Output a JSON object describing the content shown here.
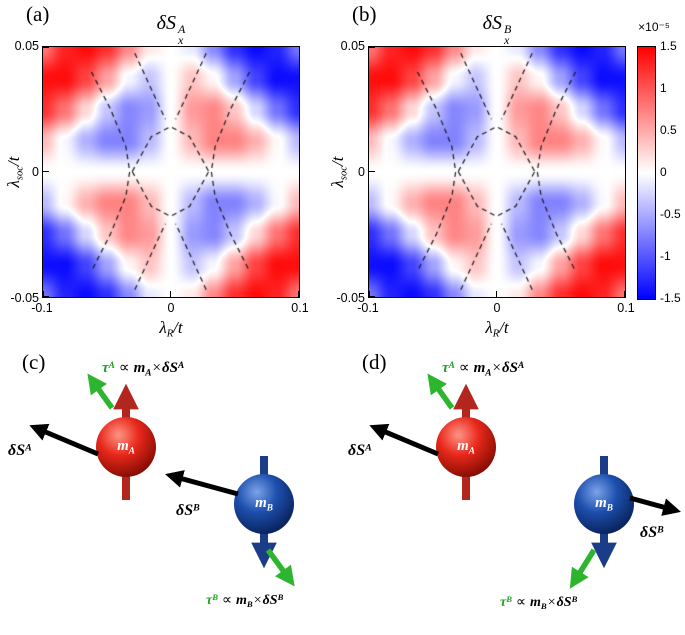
{
  "panels": {
    "a": "(a)",
    "b": "(b)",
    "c": "(c)",
    "d": "(d)"
  },
  "math": {
    "deltaS": "δS",
    "sub_x": "x",
    "sup_A": "A",
    "sup_B": "B",
    "lambda": "λ",
    "sub_soc": "soc",
    "sub_R": "R",
    "slash_t": "/t",
    "tau": "τ",
    "m": "m",
    "sub_A": "A",
    "sub_B": "B",
    "propto": "∝",
    "times": "×"
  },
  "axes": {
    "x_tick_labels": [
      "-0.1",
      "0",
      "0.1"
    ],
    "y_tick_labels": [
      "0.05",
      "0",
      "-0.05"
    ]
  },
  "colorbar": {
    "exponent": "×10⁻⁵",
    "tick_labels": [
      "1.5",
      "1",
      "0.5",
      "0",
      "-0.5",
      "-1",
      "-1.5"
    ]
  },
  "diagram": {
    "legend_torque_A": "τ^A ∝ m_A × δS^A",
    "legend_torque_B": "τ^B ∝ m_B × δS^B",
    "legend_spin_A": "δS^A",
    "legend_spin_B": "δS^B",
    "legend_moment_A": "m_A",
    "legend_moment_B": "m_B",
    "torque_color": "#1ca41f",
    "moment_A_color": "#b3261e",
    "moment_B_color": "#1b3c86",
    "spin_color": "#000000"
  },
  "chart_data": {
    "type": "heatmap",
    "panels": [
      {
        "id": "a",
        "title": "δS_x^A"
      },
      {
        "id": "b",
        "title": "δS_x^B"
      }
    ],
    "x_axis": {
      "label": "λ_R/t",
      "min": -0.1,
      "max": 0.1,
      "ticks": [
        -0.1,
        0,
        0.1
      ]
    },
    "y_axis": {
      "label": "λ_soc/t",
      "min": -0.05,
      "max": 0.05,
      "ticks": [
        -0.05,
        0,
        0.05
      ]
    },
    "value_units": "1e-5",
    "value_range": [
      -1.5,
      1.5
    ],
    "colormap": "blue-white-red",
    "note": "Grid values estimated from figure (units of 1e-5); panels (a) and (b) are visually identical; pattern is odd in both axes: red lobes top-left/bottom-right, blue lobes top-right/bottom-left, with inner lobes of opposite sign and white bands along the axes.",
    "grid": [
      [
        0.81,
        1.29,
        1.44,
        1.23,
        0.7,
        0.13,
        0,
        -0.13,
        -0.7,
        -1.23,
        -1.44,
        -1.29,
        -0.81
      ],
      [
        1.41,
        1.43,
        1.11,
        0.55,
        -0.05,
        -0.34,
        0,
        0.34,
        0.05,
        -0.55,
        -1.11,
        -1.43,
        -1.41
      ],
      [
        1.23,
        0.83,
        0.24,
        -0.34,
        -0.71,
        -0.59,
        0,
        0.59,
        0.71,
        0.34,
        -0.24,
        -0.83,
        -1.23
      ],
      [
        0.4,
        -0.04,
        -0.46,
        -0.73,
        -0.73,
        -0.41,
        0,
        0.41,
        0.73,
        0.73,
        0.46,
        0.04,
        -0.4
      ],
      [
        0,
        0,
        0,
        0,
        0,
        0,
        0,
        0,
        0,
        0,
        0,
        0,
        0
      ],
      [
        -0.4,
        0.04,
        0.46,
        0.73,
        0.73,
        0.41,
        0,
        -0.41,
        -0.73,
        -0.73,
        -0.46,
        -0.04,
        0.4
      ],
      [
        -1.23,
        -0.83,
        -0.24,
        0.34,
        0.71,
        0.59,
        0,
        -0.59,
        -0.71,
        -0.34,
        0.24,
        0.83,
        1.23
      ],
      [
        -1.41,
        -1.43,
        -1.11,
        -0.55,
        0.05,
        0.34,
        0,
        -0.34,
        -0.05,
        0.55,
        1.11,
        1.43,
        1.41
      ],
      [
        -0.81,
        -1.29,
        -1.44,
        -1.23,
        -0.7,
        -0.13,
        0,
        0.13,
        0.7,
        1.23,
        1.44,
        1.29,
        0.81
      ]
    ],
    "dashed_contours_normalized": [
      [
        [
          -0.62,
          0.8
        ],
        [
          -0.47,
          0.5
        ],
        [
          -0.35,
          0.2
        ],
        [
          -0.32,
          0.0
        ],
        [
          -0.35,
          -0.2
        ],
        [
          -0.47,
          -0.5
        ],
        [
          -0.62,
          -0.8
        ]
      ],
      [
        [
          0.62,
          0.8
        ],
        [
          0.47,
          0.5
        ],
        [
          0.35,
          0.2
        ],
        [
          0.32,
          0.0
        ],
        [
          0.35,
          -0.2
        ],
        [
          0.47,
          -0.5
        ],
        [
          0.62,
          -0.8
        ]
      ],
      [
        [
          -0.3,
          0.0
        ],
        [
          -0.15,
          0.28
        ],
        [
          0.0,
          0.36
        ],
        [
          0.15,
          0.28
        ],
        [
          0.3,
          0.0
        ]
      ],
      [
        [
          -0.3,
          0.0
        ],
        [
          -0.15,
          -0.28
        ],
        [
          0.0,
          -0.36
        ],
        [
          0.15,
          -0.28
        ],
        [
          0.3,
          0.0
        ]
      ],
      [
        [
          -0.28,
          0.95
        ],
        [
          -0.1,
          0.55
        ],
        [
          -0.04,
          0.42
        ]
      ],
      [
        [
          0.28,
          0.95
        ],
        [
          0.1,
          0.55
        ],
        [
          0.04,
          0.42
        ]
      ],
      [
        [
          -0.28,
          -0.95
        ],
        [
          -0.1,
          -0.55
        ],
        [
          -0.04,
          -0.42
        ]
      ],
      [
        [
          0.28,
          -0.95
        ],
        [
          0.1,
          -0.55
        ],
        [
          0.04,
          -0.42
        ]
      ]
    ]
  }
}
